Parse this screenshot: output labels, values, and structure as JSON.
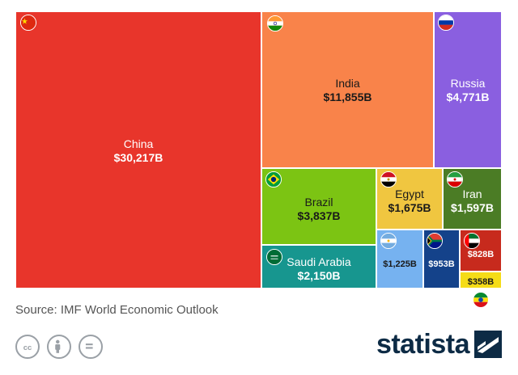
{
  "chart_data": {
    "type": "treemap",
    "unit": "B",
    "items": [
      {
        "name": "China",
        "label": "$30,217B",
        "value": 30217,
        "color": "#e8352b",
        "flag": "china-flag",
        "text": "light"
      },
      {
        "name": "India",
        "label": "$11,855B",
        "value": 11855,
        "color": "#f9834a",
        "flag": "india-flag",
        "text": "dark"
      },
      {
        "name": "Russia",
        "label": "$4,771B",
        "value": 4771,
        "color": "#8a5fe0",
        "flag": "russia-flag",
        "text": "light"
      },
      {
        "name": "Brazil",
        "label": "$3,837B",
        "value": 3837,
        "color": "#7cc413",
        "flag": "brazil-flag",
        "text": "dark"
      },
      {
        "name": "Saudi Arabia",
        "label": "$2,150B",
        "value": 2150,
        "color": "#17968f",
        "flag": "saudi-arabia-flag",
        "text": "light"
      },
      {
        "name": "Egypt",
        "label": "$1,675B",
        "value": 1675,
        "color": "#f0c640",
        "flag": "egypt-flag",
        "text": "dark"
      },
      {
        "name": "Iran",
        "label": "$1,597B",
        "value": 1597,
        "color": "#4b7c25",
        "flag": "iran-flag",
        "text": "light"
      },
      {
        "name": "",
        "label": "$1,225B",
        "value": 1225,
        "color": "#76b2f0",
        "flag": "argentina-flag",
        "text": "dark"
      },
      {
        "name": "",
        "label": "$953B",
        "value": 953,
        "color": "#14428a",
        "flag": "south-africa-flag",
        "text": "light"
      },
      {
        "name": "",
        "label": "$828B",
        "value": 828,
        "color": "#c72a1d",
        "flag": "uae-flag",
        "text": "light"
      },
      {
        "name": "",
        "label": "$358B",
        "value": 358,
        "color": "#f5dc18",
        "flag": "ethiopia-flag",
        "text": "dark"
      }
    ]
  },
  "source": "Source: IMF World Economic Outlook",
  "brand": "statista",
  "license_icons": [
    "creative-commons-icon",
    "attribution-icon",
    "no-derivatives-icon"
  ]
}
